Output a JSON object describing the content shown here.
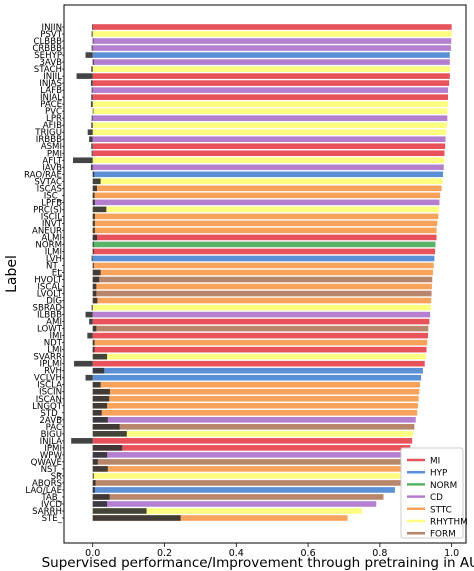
{
  "chart_data": {
    "type": "bar",
    "orientation": "horizontal",
    "xlabel": "Supervised performance/Improvement through pretraining in AUC",
    "ylabel": "Label",
    "xlim": [
      -0.08,
      1.04
    ],
    "xticks": [
      "0.0",
      "0.2",
      "0.4",
      "0.6",
      "0.8",
      "1.0"
    ],
    "grid": false,
    "legend_position": "lower-right",
    "legend": [
      {
        "name": "MI",
        "color": "#e8525a"
      },
      {
        "name": "HYP",
        "color": "#5b8fd6"
      },
      {
        "name": "NORM",
        "color": "#58b369"
      },
      {
        "name": "CD",
        "color": "#b57fd0"
      },
      {
        "name": "STTC",
        "color": "#f7a35c"
      },
      {
        "name": "RHYTHM",
        "color": "#fdfd80"
      },
      {
        "name": "FORM",
        "color": "#b8866b"
      }
    ],
    "series": [
      {
        "name": "Supervised performance",
        "encoding": "bar color = superclass"
      },
      {
        "name": "Improvement through pretraining",
        "color": "#333333"
      }
    ],
    "categories": [
      "INJIN",
      "PSVT",
      "CLBBB",
      "CRBBB",
      "SEHYP",
      "3AVB",
      "STACH",
      "INJIL",
      "INJAS",
      "LAFB",
      "INJAL",
      "PACE",
      "PVC",
      "LPR",
      "AFIB",
      "TRIGU",
      "IRBBB",
      "ASMI",
      "PMI",
      "AFLT",
      "IAVB",
      "RAO/RAE",
      "SVTAC",
      "ISCAS",
      "ISC_",
      "LPFB",
      "PRC(S)",
      "ISCIL",
      "INVT",
      "ANEUR",
      "ALMI",
      "NORM",
      "ILMI",
      "LVH",
      "NT_",
      "EL",
      "HVOLT",
      "ISCAL",
      "LVOLT",
      "DIG",
      "SBRAD",
      "ILBBB",
      "AMI",
      "LOWT",
      "IMI",
      "NDT",
      "LMI",
      "SVARR",
      "IPLMI",
      "RVH",
      "VCLVH",
      "ISCLA",
      "ISCIN",
      "ISCAN",
      "LNGQT",
      "STD_",
      "2AVB",
      "PAC",
      "BIGU",
      "INJLA",
      "IPMI",
      "WPW",
      "QWAVE",
      "NST_",
      "SR",
      "ABQRS",
      "LAO/LAE",
      "TAB_",
      "IVCD",
      "SARRH",
      "STE_"
    ],
    "groups": [
      "MI",
      "RHYTHM",
      "CD",
      "CD",
      "HYP",
      "CD",
      "RHYTHM",
      "MI",
      "MI",
      "CD",
      "MI",
      "RHYTHM",
      "RHYTHM",
      "CD",
      "RHYTHM",
      "RHYTHM",
      "CD",
      "MI",
      "MI",
      "RHYTHM",
      "CD",
      "HYP",
      "RHYTHM",
      "STTC",
      "STTC",
      "CD",
      "RHYTHM",
      "STTC",
      "STTC",
      "STTC",
      "MI",
      "NORM",
      "MI",
      "HYP",
      "STTC",
      "STTC",
      "FORM",
      "STTC",
      "FORM",
      "STTC",
      "RHYTHM",
      "CD",
      "MI",
      "FORM",
      "MI",
      "STTC",
      "MI",
      "RHYTHM",
      "MI",
      "HYP",
      "HYP",
      "STTC",
      "STTC",
      "STTC",
      "STTC",
      "STTC",
      "CD",
      "FORM",
      "RHYTHM",
      "MI",
      "MI",
      "CD",
      "FORM",
      "STTC",
      "RHYTHM",
      "FORM",
      "HYP",
      "FORM",
      "CD",
      "RHYTHM",
      "STTC"
    ],
    "values": [
      1.0,
      1.0,
      0.999,
      0.998,
      0.995,
      0.995,
      0.995,
      0.995,
      0.993,
      0.99,
      0.99,
      0.99,
      0.988,
      0.988,
      0.987,
      0.985,
      0.983,
      0.982,
      0.98,
      0.979,
      0.978,
      0.976,
      0.975,
      0.972,
      0.968,
      0.966,
      0.965,
      0.963,
      0.96,
      0.958,
      0.958,
      0.955,
      0.954,
      0.952,
      0.95,
      0.948,
      0.946,
      0.945,
      0.944,
      0.943,
      0.942,
      0.94,
      0.938,
      0.935,
      0.934,
      0.932,
      0.93,
      0.928,
      0.925,
      0.92,
      0.915,
      0.912,
      0.91,
      0.908,
      0.906,
      0.904,
      0.9,
      0.896,
      0.893,
      0.89,
      0.885,
      0.88,
      0.878,
      0.875,
      0.868,
      0.865,
      0.842,
      0.81,
      0.79,
      0.75,
      0.71
    ],
    "improvement": [
      -0.002,
      -0.003,
      0.002,
      -0.003,
      -0.02,
      0.003,
      -0.004,
      -0.045,
      -0.005,
      -0.003,
      -0.004,
      -0.005,
      0.002,
      -0.003,
      -0.004,
      -0.014,
      -0.01,
      -0.004,
      -0.003,
      -0.055,
      -0.005,
      0.004,
      0.022,
      0.012,
      0.005,
      0.006,
      0.038,
      0.006,
      0.006,
      0.006,
      0.012,
      0.003,
      0.003,
      -0.003,
      0.003,
      0.022,
      0.018,
      0.01,
      0.01,
      0.013,
      -0.003,
      -0.02,
      -0.01,
      0.01,
      -0.015,
      0.005,
      0.005,
      0.04,
      -0.052,
      0.032,
      -0.02,
      0.022,
      0.048,
      0.046,
      0.04,
      0.025,
      0.042,
      0.075,
      0.095,
      -0.06,
      0.082,
      0.04,
      0.014,
      0.042,
      0.003,
      0.008,
      0.006,
      0.047,
      0.04,
      0.15,
      0.245
    ]
  }
}
